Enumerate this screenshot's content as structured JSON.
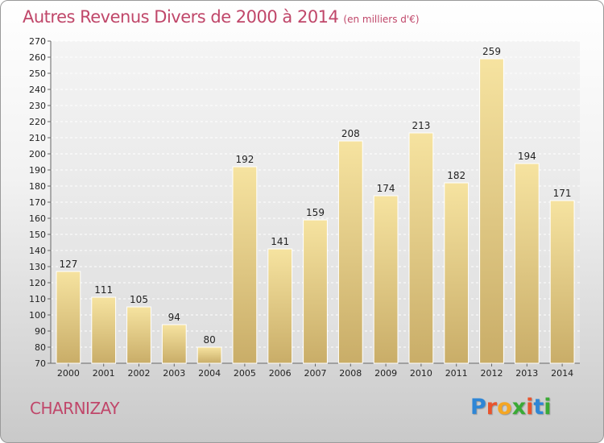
{
  "header": {
    "title": "Autres Revenus Divers de 2000 à 2014",
    "unit": "(en milliers d'€)"
  },
  "footer": {
    "place": "CHARNIZAY",
    "logo_letters": [
      "P",
      "r",
      "o",
      "x",
      "i",
      "t",
      "i"
    ],
    "logo_colors": [
      "#2e86d6",
      "#e9542d",
      "#f5a623",
      "#3aaa35",
      "#e9542d",
      "#2e86d6",
      "#3aaa35"
    ]
  },
  "chart_data": {
    "type": "bar",
    "categories": [
      "2000",
      "2001",
      "2002",
      "2003",
      "2004",
      "2005",
      "2006",
      "2007",
      "2008",
      "2009",
      "2010",
      "2011",
      "2012",
      "2013",
      "2014"
    ],
    "values": [
      127,
      111,
      105,
      94,
      80,
      192,
      141,
      159,
      208,
      174,
      213,
      182,
      259,
      194,
      171
    ],
    "title": "Autres Revenus Divers de 2000 à 2014",
    "ylabel": "",
    "xlabel": "",
    "ylim": [
      70,
      270
    ],
    "ytick_step": 10,
    "grid": true,
    "bar_color_light": "#f6e3a0",
    "bar_color_dark": "#c9ad68"
  }
}
